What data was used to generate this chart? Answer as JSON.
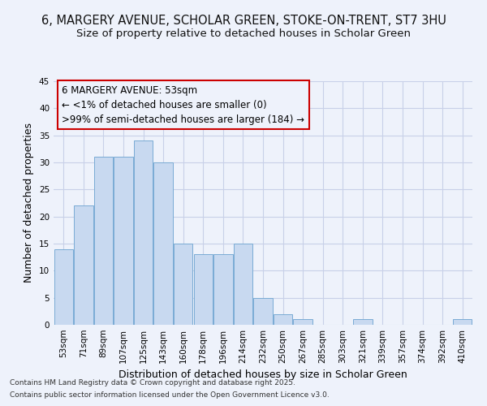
{
  "title": "6, MARGERY AVENUE, SCHOLAR GREEN, STOKE-ON-TRENT, ST7 3HU",
  "subtitle": "Size of property relative to detached houses in Scholar Green",
  "xlabel": "Distribution of detached houses by size in Scholar Green",
  "ylabel": "Number of detached properties",
  "categories": [
    "53sqm",
    "71sqm",
    "89sqm",
    "107sqm",
    "125sqm",
    "143sqm",
    "160sqm",
    "178sqm",
    "196sqm",
    "214sqm",
    "232sqm",
    "250sqm",
    "267sqm",
    "285sqm",
    "303sqm",
    "321sqm",
    "339sqm",
    "357sqm",
    "374sqm",
    "392sqm",
    "410sqm"
  ],
  "values": [
    14,
    22,
    31,
    31,
    34,
    30,
    15,
    13,
    13,
    15,
    5,
    2,
    1,
    0,
    0,
    1,
    0,
    0,
    0,
    0,
    1
  ],
  "bar_color": "#c8d9f0",
  "bar_edge_color": "#7aabd4",
  "background_color": "#eef2fb",
  "plot_bg_color": "#eef2fb",
  "grid_color": "#c8d0e8",
  "ylim": [
    0,
    45
  ],
  "yticks": [
    0,
    5,
    10,
    15,
    20,
    25,
    30,
    35,
    40,
    45
  ],
  "annotation_title": "6 MARGERY AVENUE: 53sqm",
  "annotation_line1": "← <1% of detached houses are smaller (0)",
  "annotation_line2": ">99% of semi-detached houses are larger (184) →",
  "footer_line1": "Contains HM Land Registry data © Crown copyright and database right 2025.",
  "footer_line2": "Contains public sector information licensed under the Open Government Licence v3.0.",
  "title_fontsize": 10.5,
  "subtitle_fontsize": 9.5,
  "axis_label_fontsize": 9,
  "tick_fontsize": 7.5,
  "annotation_fontsize": 8.5,
  "footer_fontsize": 6.5
}
